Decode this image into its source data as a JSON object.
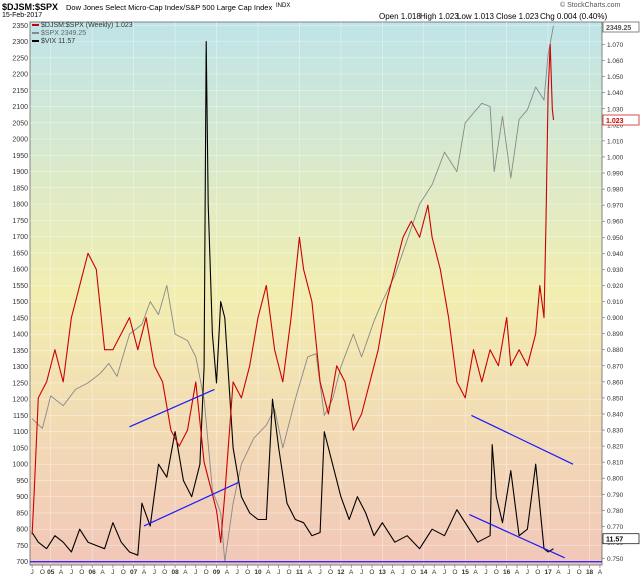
{
  "header": {
    "symbol": "$DJSM:$SPX",
    "title": "Dow Jones Select Micro-Cap Index/S&P 500 Large Cap Index",
    "exchange": "INDX",
    "date": "15-Feb-2017",
    "open": "Open 1.018",
    "high": "High 1.023",
    "low": "Low 1.013",
    "close": "Close 1.023",
    "chg": "Chg 0.004 (0.40%)",
    "watermark": "© StockCharts.com"
  },
  "legend": [
    {
      "label": "$DJSM:$SPX (Weekly) 1.023",
      "color": "#cc0000"
    },
    {
      "label": "$SPX 2349.25",
      "color": "#888888"
    },
    {
      "label": "$VIX 11.57",
      "color": "#000000"
    }
  ],
  "price_badges": {
    "spx": "2349.25",
    "ratio": "1.023",
    "vix": "11.57"
  },
  "chart_data": {
    "type": "line",
    "left_axis": {
      "ylim": [
        690,
        2360
      ],
      "ticks": [
        700,
        750,
        800,
        850,
        900,
        950,
        1000,
        1050,
        1100,
        1150,
        1200,
        1250,
        1300,
        1350,
        1400,
        1450,
        1500,
        1550,
        1600,
        1650,
        1700,
        1750,
        1800,
        1850,
        1900,
        1950,
        2000,
        2050,
        2100,
        2150,
        2200,
        2250,
        2300,
        2350
      ]
    },
    "right_axis": {
      "ylim": [
        0.746,
        1.084
      ],
      "ticks": [
        "0.750",
        "0.760",
        "0.770",
        "0.780",
        "0.790",
        "0.800",
        "0.810",
        "0.820",
        "0.830",
        "0.840",
        "0.850",
        "0.860",
        "0.870",
        "0.880",
        "0.890",
        "0.900",
        "0.910",
        "0.920",
        "0.930",
        "0.940",
        "0.950",
        "0.960",
        "0.970",
        "0.980",
        "0.990",
        "1.000",
        "1.010",
        "1.020",
        "1.030",
        "1.040",
        "1.050",
        "1.060",
        "1.070"
      ]
    },
    "x_axis": {
      "range": [
        2004.5,
        2018.3
      ],
      "labels": [
        {
          "t": 2004.55,
          "l": "J"
        },
        {
          "t": 2004.8,
          "l": "O"
        },
        {
          "t": 2005.0,
          "l": "05"
        },
        {
          "t": 2005.25,
          "l": "A"
        },
        {
          "t": 2005.5,
          "l": "J"
        },
        {
          "t": 2005.75,
          "l": "O"
        },
        {
          "t": 2006.0,
          "l": "06"
        },
        {
          "t": 2006.25,
          "l": "A"
        },
        {
          "t": 2006.5,
          "l": "J"
        },
        {
          "t": 2006.75,
          "l": "O"
        },
        {
          "t": 2007.0,
          "l": "07"
        },
        {
          "t": 2007.25,
          "l": "A"
        },
        {
          "t": 2007.5,
          "l": "J"
        },
        {
          "t": 2007.75,
          "l": "O"
        },
        {
          "t": 2008.0,
          "l": "08"
        },
        {
          "t": 2008.25,
          "l": "A"
        },
        {
          "t": 2008.5,
          "l": "J"
        },
        {
          "t": 2008.75,
          "l": "O"
        },
        {
          "t": 2009.0,
          "l": "09"
        },
        {
          "t": 2009.25,
          "l": "A"
        },
        {
          "t": 2009.5,
          "l": "J"
        },
        {
          "t": 2009.75,
          "l": "O"
        },
        {
          "t": 2010.0,
          "l": "10"
        },
        {
          "t": 2010.25,
          "l": "A"
        },
        {
          "t": 2010.5,
          "l": "J"
        },
        {
          "t": 2010.75,
          "l": "O"
        },
        {
          "t": 2011.0,
          "l": "11"
        },
        {
          "t": 2011.25,
          "l": "A"
        },
        {
          "t": 2011.5,
          "l": "J"
        },
        {
          "t": 2011.75,
          "l": "O"
        },
        {
          "t": 2012.0,
          "l": "12"
        },
        {
          "t": 2012.25,
          "l": "A"
        },
        {
          "t": 2012.5,
          "l": "J"
        },
        {
          "t": 2012.75,
          "l": "O"
        },
        {
          "t": 2013.0,
          "l": "13"
        },
        {
          "t": 2013.25,
          "l": "A"
        },
        {
          "t": 2013.5,
          "l": "J"
        },
        {
          "t": 2013.75,
          "l": "O"
        },
        {
          "t": 2014.0,
          "l": "14"
        },
        {
          "t": 2014.25,
          "l": "A"
        },
        {
          "t": 2014.5,
          "l": "J"
        },
        {
          "t": 2014.75,
          "l": "O"
        },
        {
          "t": 2015.0,
          "l": "15"
        },
        {
          "t": 2015.25,
          "l": "A"
        },
        {
          "t": 2015.5,
          "l": "J"
        },
        {
          "t": 2015.75,
          "l": "O"
        },
        {
          "t": 2016.0,
          "l": "16"
        },
        {
          "t": 2016.25,
          "l": "A"
        },
        {
          "t": 2016.5,
          "l": "J"
        },
        {
          "t": 2016.75,
          "l": "O"
        },
        {
          "t": 2017.0,
          "l": "17"
        },
        {
          "t": 2017.25,
          "l": "A"
        },
        {
          "t": 2017.5,
          "l": "J"
        },
        {
          "t": 2017.75,
          "l": "O"
        },
        {
          "t": 2018.0,
          "l": "18"
        },
        {
          "t": 2018.25,
          "l": "A"
        }
      ]
    },
    "series": [
      {
        "name": "$DJSM:$SPX (Weekly) 1.023",
        "color": "#cc0000",
        "axis": "right",
        "x": [
          2004.55,
          2004.6,
          2004.7,
          2004.9,
          2005.1,
          2005.3,
          2005.5,
          2005.7,
          2005.9,
          2006.1,
          2006.3,
          2006.5,
          2006.7,
          2006.9,
          2007.1,
          2007.3,
          2007.5,
          2007.7,
          2007.9,
          2008.1,
          2008.3,
          2008.5,
          2008.7,
          2008.9,
          2009.0,
          2009.1,
          2009.2,
          2009.4,
          2009.6,
          2009.8,
          2010.0,
          2010.2,
          2010.4,
          2010.6,
          2010.8,
          2011.0,
          2011.1,
          2011.3,
          2011.5,
          2011.7,
          2011.9,
          2012.1,
          2012.3,
          2012.5,
          2012.7,
          2012.9,
          2013.1,
          2013.3,
          2013.5,
          2013.7,
          2013.9,
          2014.1,
          2014.2,
          2014.4,
          2014.6,
          2014.8,
          2015.0,
          2015.2,
          2015.4,
          2015.6,
          2015.8,
          2016.0,
          2016.1,
          2016.3,
          2016.5,
          2016.7,
          2016.8,
          2016.85,
          2016.9,
          2016.95,
          2017.0,
          2017.05,
          2017.1,
          2017.13
        ],
        "y": [
          0.765,
          0.79,
          0.85,
          0.86,
          0.88,
          0.86,
          0.9,
          0.92,
          0.94,
          0.93,
          0.88,
          0.88,
          0.89,
          0.9,
          0.88,
          0.9,
          0.87,
          0.86,
          0.83,
          0.82,
          0.83,
          0.86,
          0.81,
          0.79,
          0.78,
          0.76,
          0.79,
          0.86,
          0.85,
          0.87,
          0.9,
          0.92,
          0.88,
          0.86,
          0.9,
          0.95,
          0.93,
          0.91,
          0.86,
          0.84,
          0.87,
          0.86,
          0.83,
          0.84,
          0.86,
          0.88,
          0.91,
          0.93,
          0.95,
          0.96,
          0.95,
          0.97,
          0.95,
          0.93,
          0.9,
          0.86,
          0.85,
          0.88,
          0.86,
          0.88,
          0.87,
          0.9,
          0.87,
          0.88,
          0.87,
          0.89,
          0.92,
          0.91,
          0.9,
          0.96,
          1.04,
          1.07,
          1.03,
          1.023
        ]
      },
      {
        "name": "$SPX 2349.25",
        "color": "#888888",
        "axis": "left",
        "x": [
          2004.55,
          2004.8,
          2005.0,
          2005.3,
          2005.6,
          2005.9,
          2006.2,
          2006.4,
          2006.6,
          2006.9,
          2007.2,
          2007.4,
          2007.6,
          2007.8,
          2008.0,
          2008.3,
          2008.5,
          2008.7,
          2008.9,
          2009.1,
          2009.2,
          2009.4,
          2009.6,
          2009.9,
          2010.2,
          2010.4,
          2010.6,
          2010.9,
          2011.2,
          2011.4,
          2011.6,
          2011.8,
          2012.0,
          2012.3,
          2012.5,
          2012.8,
          2013.0,
          2013.3,
          2013.6,
          2013.9,
          2014.2,
          2014.5,
          2014.8,
          2015.0,
          2015.2,
          2015.4,
          2015.6,
          2015.7,
          2015.9,
          2016.1,
          2016.3,
          2016.5,
          2016.7,
          2016.9,
          2017.0,
          2017.13
        ],
        "y": [
          1140,
          1110,
          1210,
          1180,
          1230,
          1250,
          1280,
          1310,
          1270,
          1400,
          1430,
          1500,
          1460,
          1550,
          1400,
          1380,
          1330,
          1200,
          920,
          850,
          700,
          880,
          1000,
          1080,
          1120,
          1170,
          1050,
          1200,
          1330,
          1340,
          1150,
          1200,
          1300,
          1400,
          1330,
          1440,
          1500,
          1580,
          1690,
          1800,
          1860,
          1960,
          1900,
          2050,
          2080,
          2110,
          2100,
          1900,
          2070,
          1880,
          2060,
          2090,
          2160,
          2120,
          2260,
          2349
        ]
      },
      {
        "name": "$VIX 11.57",
        "color": "#000000",
        "axis": "left",
        "x": [
          2004.55,
          2004.7,
          2004.9,
          2005.1,
          2005.3,
          2005.5,
          2005.7,
          2005.9,
          2006.1,
          2006.3,
          2006.5,
          2006.7,
          2006.9,
          2007.1,
          2007.2,
          2007.4,
          2007.6,
          2007.8,
          2008.0,
          2008.2,
          2008.4,
          2008.6,
          2008.7,
          2008.75,
          2008.8,
          2008.9,
          2009.0,
          2009.1,
          2009.2,
          2009.4,
          2009.6,
          2009.8,
          2010.0,
          2010.2,
          2010.35,
          2010.5,
          2010.7,
          2010.9,
          2011.1,
          2011.3,
          2011.5,
          2011.6,
          2011.8,
          2012.0,
          2012.2,
          2012.4,
          2012.6,
          2012.8,
          2013.0,
          2013.3,
          2013.6,
          2013.9,
          2014.2,
          2014.5,
          2014.8,
          2015.0,
          2015.3,
          2015.6,
          2015.65,
          2015.75,
          2015.9,
          2016.1,
          2016.3,
          2016.5,
          2016.7,
          2016.9,
          2017.0,
          2017.13
        ],
        "y": [
          790,
          760,
          740,
          780,
          760,
          730,
          800,
          760,
          750,
          740,
          820,
          760,
          730,
          720,
          880,
          810,
          1000,
          960,
          1100,
          950,
          900,
          1000,
          1300,
          2300,
          1800,
          1400,
          1250,
          1500,
          1450,
          1050,
          900,
          850,
          830,
          830,
          1200,
          1050,
          880,
          830,
          820,
          780,
          790,
          1100,
          1000,
          900,
          830,
          900,
          850,
          780,
          820,
          760,
          780,
          740,
          800,
          780,
          860,
          820,
          760,
          780,
          1060,
          900,
          820,
          980,
          780,
          800,
          1000,
          740,
          730,
          740
        ]
      }
    ],
    "trendlines": [
      {
        "color": "#1a1aff",
        "axis": "left",
        "from": [
          2006.9,
          1115
        ],
        "to": [
          2008.95,
          1230
        ]
      },
      {
        "color": "#1a1aff",
        "axis": "left",
        "from": [
          2007.25,
          810
        ],
        "to": [
          2009.55,
          945
        ]
      },
      {
        "color": "#1a1aff",
        "axis": "left",
        "from": [
          2015.15,
          1150
        ],
        "to": [
          2017.6,
          1000
        ]
      },
      {
        "color": "#1a1aff",
        "axis": "left",
        "from": [
          2015.1,
          845
        ],
        "to": [
          2017.4,
          712
        ]
      },
      {
        "color": "#1a1aff",
        "axis": "left",
        "from": [
          2004.5,
          700
        ],
        "to": [
          2018.3,
          700
        ]
      }
    ]
  }
}
